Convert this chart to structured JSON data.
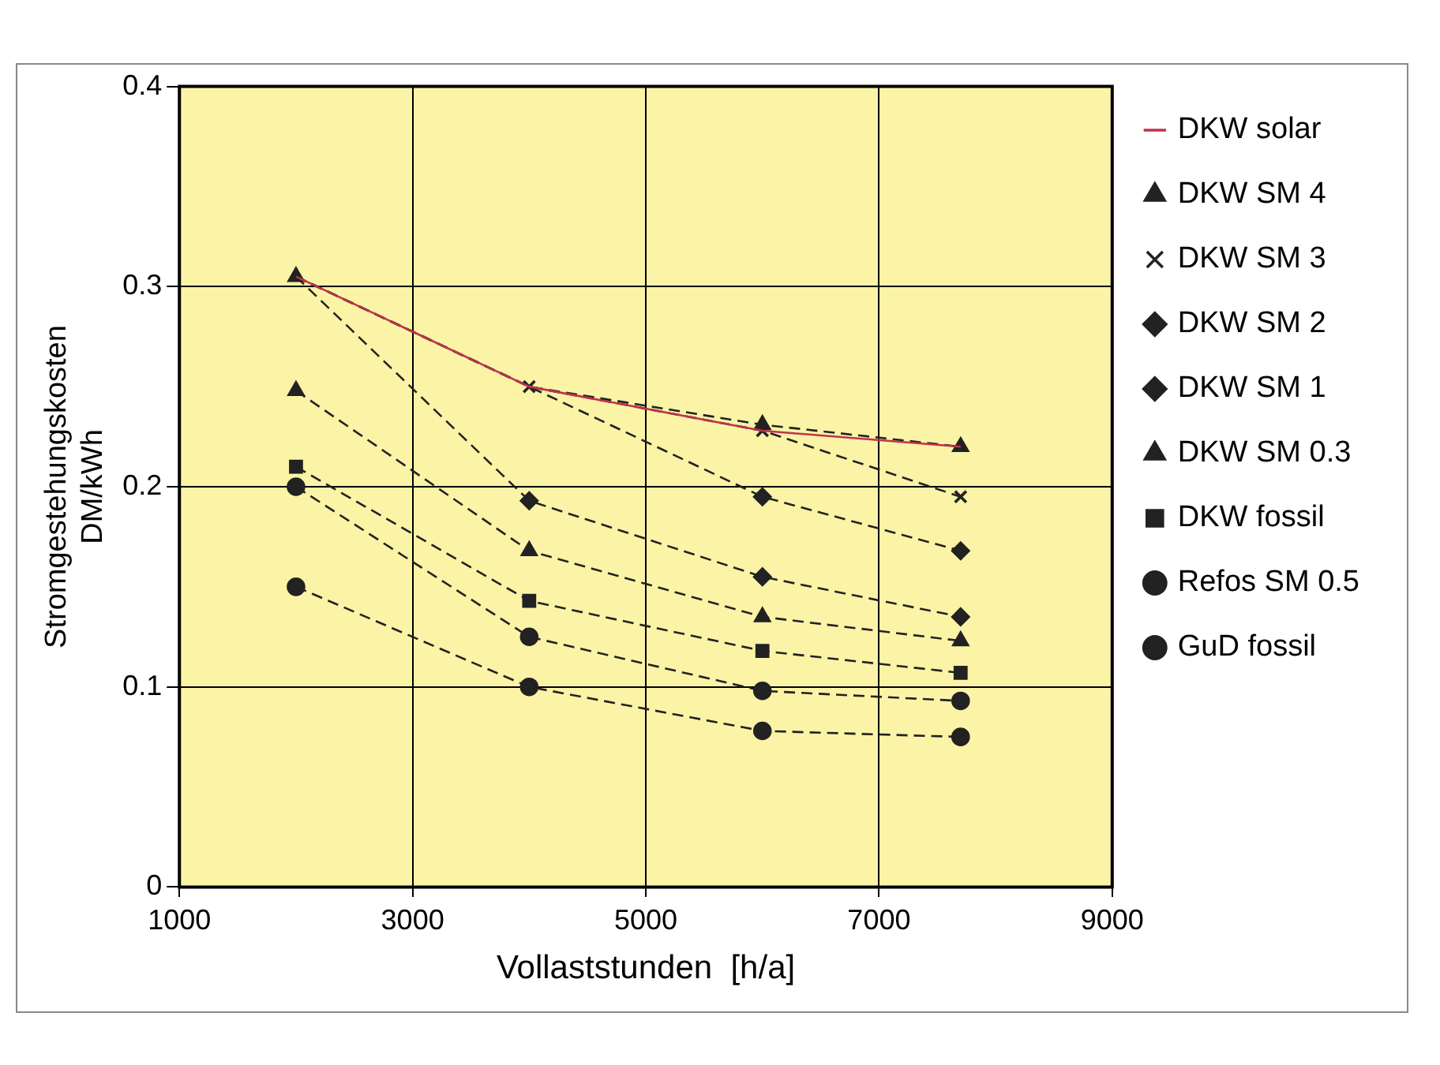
{
  "chart_data": {
    "type": "line",
    "xlabel": "Vollaststunden  [h/a]",
    "ylabel": "Stromgestehungskosten\nDM/kWh",
    "xlim": [
      1000,
      9000
    ],
    "xticks": [
      1000,
      3000,
      5000,
      7000,
      9000
    ],
    "ylim": [
      0,
      0.4
    ],
    "yticks": [
      0,
      0.1,
      0.2,
      0.3,
      0.4
    ],
    "grid": true,
    "legend": "right",
    "x": [
      2000,
      4000,
      6000,
      7700
    ],
    "series": [
      {
        "name": "DKW solar",
        "color": "#c0334d",
        "values": [
          0.305,
          0.25,
          0.228,
          0.22
        ],
        "marker": "none",
        "line_style": "solid"
      },
      {
        "name": "DKW SM 4",
        "color": "#222222",
        "values": [
          0.305,
          0.25,
          0.231,
          0.22
        ],
        "marker": "triangle",
        "line_style": "dashed"
      },
      {
        "name": "DKW SM 3",
        "color": "#222222",
        "values": [
          0.305,
          0.25,
          0.228,
          0.195
        ],
        "marker": "cross",
        "line_style": "dashed"
      },
      {
        "name": "DKW SM 2",
        "color": "#222222",
        "values": [
          0.305,
          0.25,
          0.195,
          0.168
        ],
        "marker": "diamond",
        "line_style": "dashed"
      },
      {
        "name": "DKW SM 1",
        "color": "#222222",
        "values": [
          0.305,
          0.193,
          0.155,
          0.135
        ],
        "marker": "diamond",
        "line_style": "dashed"
      },
      {
        "name": "DKW SM 0.3",
        "color": "#222222",
        "values": [
          0.248,
          0.168,
          0.135,
          0.123
        ],
        "marker": "triangle",
        "line_style": "dashed"
      },
      {
        "name": "DKW fossil",
        "color": "#222222",
        "values": [
          0.21,
          0.143,
          0.118,
          0.107
        ],
        "marker": "square",
        "line_style": "dashed"
      },
      {
        "name": "Refos SM 0.5",
        "color": "#222222",
        "values": [
          0.2,
          0.125,
          0.098,
          0.093
        ],
        "marker": "circle",
        "line_style": "dashed"
      },
      {
        "name": "GuD fossil",
        "color": "#222222",
        "values": [
          0.15,
          0.1,
          0.078,
          0.075
        ],
        "marker": "circle",
        "line_style": "dashed"
      }
    ]
  }
}
